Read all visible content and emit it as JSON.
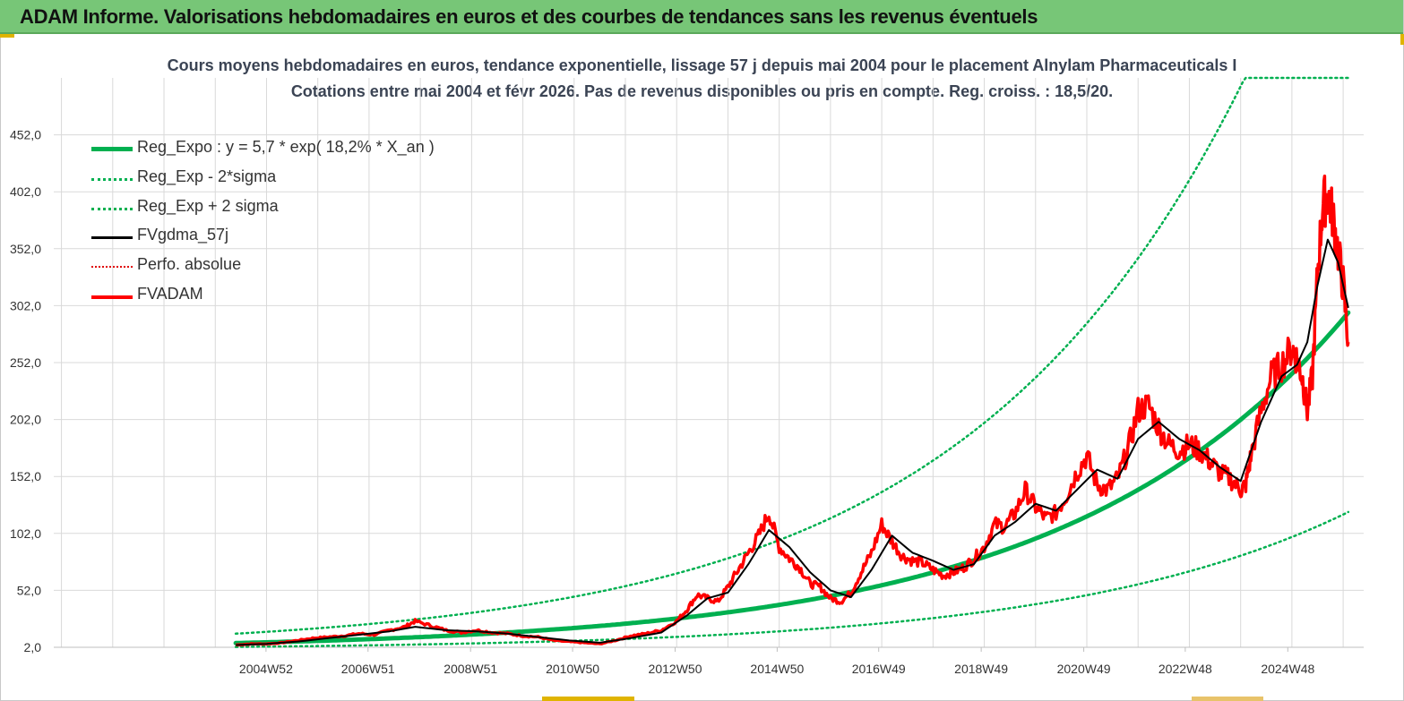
{
  "header": {
    "title": "ADAM Informe. Valorisations hebdomadaires en euros et des courbes de tendances sans les revenus éventuels"
  },
  "colors": {
    "header_bg": "#77c677",
    "reg_expo": "#00b050",
    "sigma": "#00b050",
    "mma": "#000000",
    "perfo": "#e00000",
    "fvadam": "#ff0000",
    "grid": "#d9d9d9"
  },
  "chart_data": {
    "type": "line",
    "title_line1": "Cours moyens hebdomadaires en euros, tendance exponentielle, lissage 57 j depuis mai 2004 pour le placement Alnylam Pharmaceuticals I",
    "title_line2": "Cotations entre mai 2004 et févr 2026. Pas de revenus disponibles ou pris en compte. Reg. croiss. : 18,5/20.",
    "x_start_year": 2004.4,
    "x_end_year": 2026.1,
    "axis_start_year": 2000.85,
    "axis_end_year": 2026.4,
    "x_tick_labels": [
      "2004W52",
      "2006W51",
      "2008W51",
      "2010W50",
      "2012W50",
      "2014W50",
      "2016W49",
      "2018W49",
      "2020W49",
      "2022W48",
      "2024W48"
    ],
    "x_tick_years": [
      2004.99,
      2006.98,
      2008.98,
      2010.97,
      2012.97,
      2014.96,
      2016.94,
      2018.94,
      2020.94,
      2022.92,
      2024.92
    ],
    "y_tick_labels": [
      "2,0",
      "52,0",
      "102,0",
      "152,0",
      "202,0",
      "252,0",
      "302,0",
      "352,0",
      "402,0",
      "452,0"
    ],
    "ylim": [
      2,
      502
    ],
    "legend": [
      {
        "key": "reg_expo",
        "label": "Reg_Expo : y = 5,7 * exp( 18,2% *  X_an )"
      },
      {
        "key": "sigma_minus",
        "label": "Reg_Exp - 2*sigma"
      },
      {
        "key": "sigma_plus",
        "label": "Reg_Exp + 2 sigma"
      },
      {
        "key": "mma",
        "label": "FVgdma_57j"
      },
      {
        "key": "perfo",
        "label": "Perfo. absolue"
      },
      {
        "key": "fvadam",
        "label": "FVADAM"
      }
    ],
    "regression": {
      "a": 5.7,
      "rate": 0.182,
      "sigma_factor": 2.45,
      "start_year": 2004.4
    },
    "series": [
      {
        "name": "FVADAM",
        "x": [
          2004.4,
          2004.7,
          2005.0,
          2005.3,
          2005.6,
          2005.9,
          2006.2,
          2006.5,
          2006.8,
          2007.1,
          2007.4,
          2007.7,
          2007.9,
          2008.2,
          2008.5,
          2008.8,
          2009.1,
          2009.4,
          2009.7,
          2010.0,
          2010.3,
          2010.6,
          2010.9,
          2011.2,
          2011.5,
          2011.8,
          2012.1,
          2012.4,
          2012.7,
          2013.0,
          2013.2,
          2013.4,
          2013.6,
          2013.8,
          2014.0,
          2014.2,
          2014.4,
          2014.6,
          2014.8,
          2015.0,
          2015.2,
          2015.4,
          2015.6,
          2015.8,
          2016.0,
          2016.2,
          2016.4,
          2016.6,
          2016.8,
          2017.0,
          2017.2,
          2017.4,
          2017.6,
          2017.8,
          2018.0,
          2018.2,
          2018.4,
          2018.6,
          2018.8,
          2019.0,
          2019.2,
          2019.4,
          2019.6,
          2019.8,
          2020.0,
          2020.2,
          2020.4,
          2020.6,
          2020.8,
          2021.0,
          2021.2,
          2021.4,
          2021.6,
          2021.8,
          2022.0,
          2022.2,
          2022.4,
          2022.6,
          2022.8,
          2023.0,
          2023.2,
          2023.4,
          2023.6,
          2023.8,
          2024.0,
          2024.1,
          2024.2,
          2024.4,
          2024.6,
          2024.8,
          2025.0,
          2025.1,
          2025.2,
          2025.3,
          2025.4,
          2025.5,
          2025.6,
          2025.7,
          2025.8,
          2025.9,
          2026.0,
          2026.1
        ],
        "values": [
          4,
          5,
          5,
          6,
          8,
          10,
          11,
          12,
          14,
          13,
          17,
          20,
          25,
          21,
          17,
          15,
          17,
          15,
          14,
          12,
          11,
          8,
          7,
          6,
          5,
          8,
          12,
          14,
          17,
          25,
          35,
          48,
          45,
          42,
          55,
          70,
          85,
          100,
          120,
          90,
          80,
          72,
          58,
          55,
          45,
          42,
          50,
          68,
          85,
          110,
          95,
          82,
          78,
          76,
          70,
          65,
          68,
          72,
          80,
          90,
          110,
          108,
          120,
          140,
          125,
          115,
          120,
          135,
          155,
          170,
          145,
          140,
          150,
          175,
          210,
          215,
          195,
          180,
          175,
          180,
          175,
          165,
          155,
          150,
          140,
          145,
          170,
          210,
          240,
          250,
          265,
          255,
          240,
          210,
          240,
          330,
          390,
          400,
          380,
          350,
          320,
          270
        ]
      },
      {
        "name": "FVgdma_57j",
        "x": [
          2004.4,
          2005.0,
          2005.6,
          2006.2,
          2006.8,
          2007.4,
          2007.9,
          2008.5,
          2009.1,
          2009.7,
          2010.3,
          2010.9,
          2011.5,
          2012.1,
          2012.7,
          2013.2,
          2013.6,
          2014.0,
          2014.4,
          2014.8,
          2015.2,
          2015.6,
          2016.0,
          2016.4,
          2016.8,
          2017.2,
          2017.6,
          2018.0,
          2018.4,
          2018.8,
          2019.2,
          2019.6,
          2020.0,
          2020.4,
          2020.8,
          2021.2,
          2021.6,
          2022.0,
          2022.4,
          2022.8,
          2023.2,
          2023.6,
          2024.0,
          2024.4,
          2024.8,
          2025.1,
          2025.3,
          2025.5,
          2025.7,
          2025.9,
          2026.1
        ],
        "values": [
          4,
          5,
          7,
          10,
          13,
          16,
          20,
          17,
          16,
          14,
          11,
          8,
          6,
          10,
          15,
          30,
          45,
          50,
          75,
          105,
          90,
          68,
          52,
          46,
          70,
          100,
          85,
          78,
          70,
          75,
          100,
          112,
          128,
          122,
          140,
          158,
          150,
          185,
          200,
          185,
          175,
          160,
          148,
          200,
          240,
          250,
          270,
          320,
          360,
          340,
          300
        ]
      }
    ]
  }
}
